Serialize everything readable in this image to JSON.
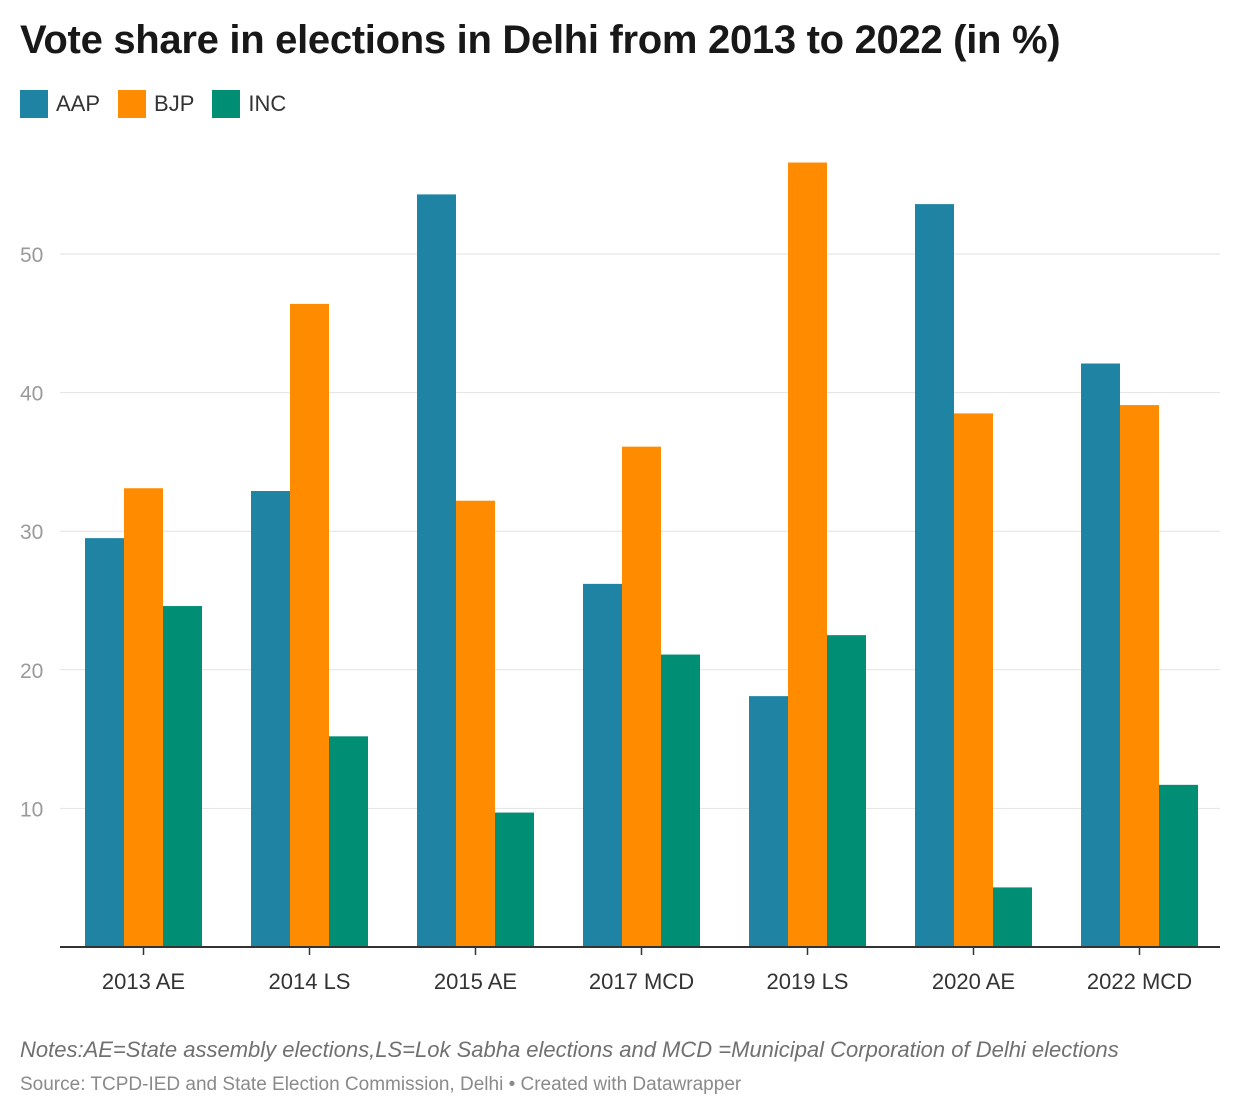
{
  "chart_data": {
    "type": "bar",
    "title": "Vote share in elections in Delhi from 2013 to 2022 (in %)",
    "categories": [
      "2013 AE",
      "2014 LS",
      "2015 AE",
      "2017 MCD",
      "2019 LS",
      "2020 AE",
      "2022 MCD"
    ],
    "series": [
      {
        "name": "AAP",
        "color": "#1f83a3",
        "values": [
          29.5,
          32.9,
          54.3,
          26.2,
          18.1,
          53.6,
          42.1
        ]
      },
      {
        "name": "BJP",
        "color": "#ff8c00",
        "values": [
          33.1,
          46.4,
          32.2,
          36.1,
          56.6,
          38.5,
          39.1
        ]
      },
      {
        "name": "INC",
        "color": "#008f74",
        "values": [
          24.6,
          15.2,
          9.7,
          21.1,
          22.5,
          4.3,
          11.7
        ]
      }
    ],
    "yticks": [
      10,
      20,
      30,
      40,
      50
    ],
    "ylim": [
      0,
      60
    ],
    "grid": true,
    "legend": "top-left",
    "notes": "Notes:AE=State assembly elections,LS=Lok Sabha elections and MCD =Municipal Corporation of Delhi elections",
    "source": "Source: TCPD-IED and State Election Commission, Delhi  • Created with Datawrapper"
  }
}
